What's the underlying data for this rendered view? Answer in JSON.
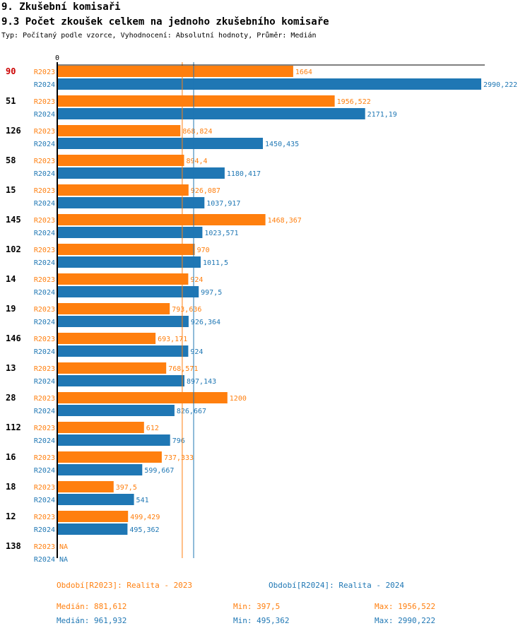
{
  "header": {
    "title": "9. Zkušební komisaři",
    "subtitle": "9.3 Počet zkoušek celkem na jednoho zkušebního komisaře",
    "type_line": "Typ: Počítaný podle vzorce, Vyhodnocení: Absolutní hodnoty, Průměr: Medián"
  },
  "colors": {
    "r2023": "#ff7f0e",
    "r2024": "#1f77b4",
    "highlight": "#cc0000"
  },
  "chart_data": {
    "type": "bar",
    "orientation": "horizontal",
    "axis_zero_label": "0",
    "xlim": [
      0,
      2990.222
    ],
    "series_names": [
      "R2023",
      "R2024"
    ],
    "highlight_category": "90",
    "categories": [
      {
        "id": "90",
        "values": [
          {
            "value": 1664,
            "label": "1664"
          },
          {
            "value": 2990.222,
            "label": "2990,222"
          }
        ]
      },
      {
        "id": "51",
        "values": [
          {
            "value": 1956.522,
            "label": "1956,522"
          },
          {
            "value": 2171.19,
            "label": "2171,19"
          }
        ]
      },
      {
        "id": "126",
        "values": [
          {
            "value": 868.824,
            "label": "868,824"
          },
          {
            "value": 1450.435,
            "label": "1450,435"
          }
        ]
      },
      {
        "id": "58",
        "values": [
          {
            "value": 894.4,
            "label": "894,4"
          },
          {
            "value": 1180.417,
            "label": "1180,417"
          }
        ]
      },
      {
        "id": "15",
        "values": [
          {
            "value": 926.087,
            "label": "926,087"
          },
          {
            "value": 1037.917,
            "label": "1037,917"
          }
        ]
      },
      {
        "id": "145",
        "values": [
          {
            "value": 1468.367,
            "label": "1468,367"
          },
          {
            "value": 1023.571,
            "label": "1023,571"
          }
        ]
      },
      {
        "id": "102",
        "values": [
          {
            "value": 970,
            "label": "970"
          },
          {
            "value": 1011.5,
            "label": "1011,5"
          }
        ]
      },
      {
        "id": "14",
        "values": [
          {
            "value": 924,
            "label": "924"
          },
          {
            "value": 997.5,
            "label": "997,5"
          }
        ]
      },
      {
        "id": "19",
        "values": [
          {
            "value": 793.636,
            "label": "793,636"
          },
          {
            "value": 926.364,
            "label": "926,364"
          }
        ]
      },
      {
        "id": "146",
        "values": [
          {
            "value": 693.171,
            "label": "693,171"
          },
          {
            "value": 924,
            "label": "924"
          }
        ]
      },
      {
        "id": "13",
        "values": [
          {
            "value": 768.571,
            "label": "768,571"
          },
          {
            "value": 897.143,
            "label": "897,143"
          }
        ]
      },
      {
        "id": "28",
        "values": [
          {
            "value": 1200,
            "label": "1200"
          },
          {
            "value": 826.667,
            "label": "826,667"
          }
        ]
      },
      {
        "id": "112",
        "values": [
          {
            "value": 612,
            "label": "612"
          },
          {
            "value": 796,
            "label": "796"
          }
        ]
      },
      {
        "id": "16",
        "values": [
          {
            "value": 737.333,
            "label": "737,333"
          },
          {
            "value": 599.667,
            "label": "599,667"
          }
        ]
      },
      {
        "id": "18",
        "values": [
          {
            "value": 397.5,
            "label": "397,5"
          },
          {
            "value": 541,
            "label": "541"
          }
        ]
      },
      {
        "id": "12",
        "values": [
          {
            "value": 499.429,
            "label": "499,429"
          },
          {
            "value": 495.362,
            "label": "495,362"
          }
        ]
      },
      {
        "id": "138",
        "values": [
          {
            "value": null,
            "label": "NA"
          },
          {
            "value": null,
            "label": "NA"
          }
        ]
      }
    ],
    "median_lines": [
      881.612,
      961.932
    ]
  },
  "legend": {
    "r2023": "Období[R2023]: Realita - 2023",
    "r2024": "Období[R2024]: Realita - 2024"
  },
  "stats": {
    "r2023": {
      "median": "Medián: 881,612",
      "min": "Min: 397,5",
      "max": "Max: 1956,522"
    },
    "r2024": {
      "median": "Medián: 961,932",
      "min": "Min: 495,362",
      "max": "Max: 2990,222"
    }
  }
}
